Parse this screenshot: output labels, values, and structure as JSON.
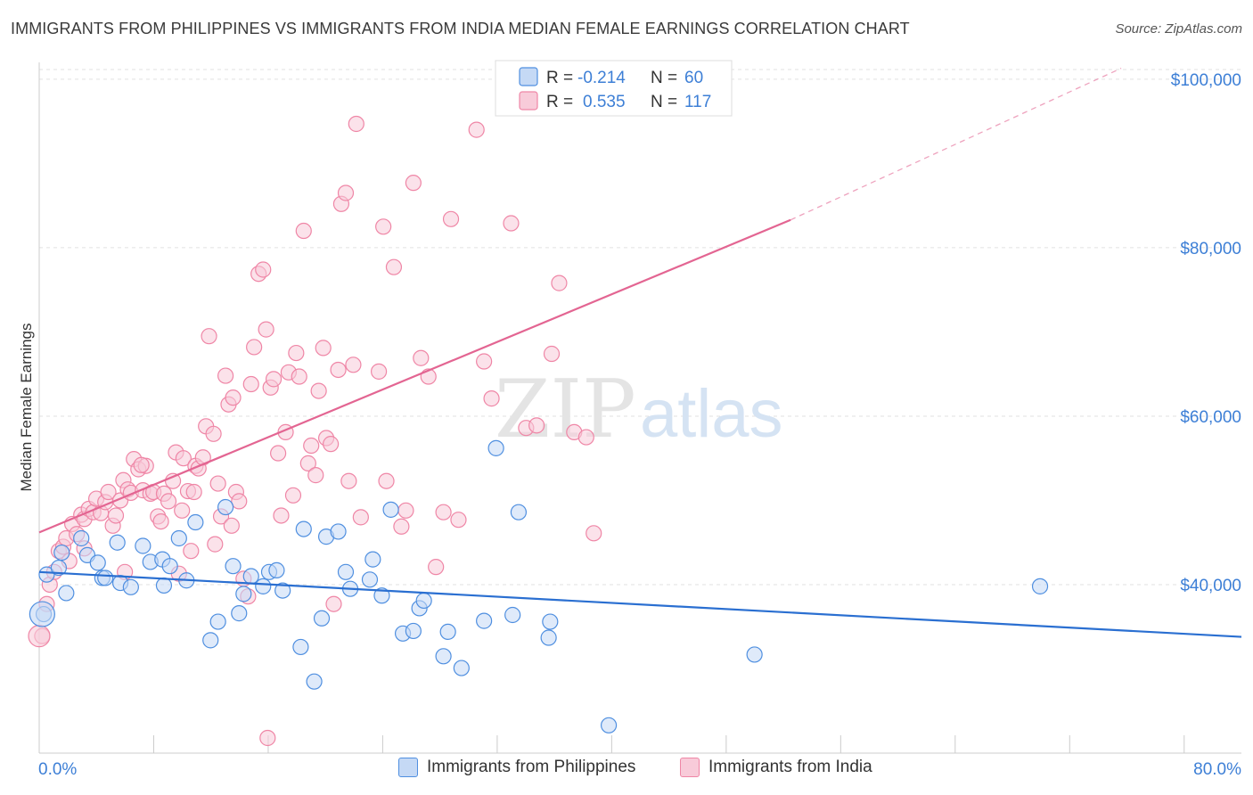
{
  "header": {
    "title": "IMMIGRANTS FROM PHILIPPINES VS IMMIGRANTS FROM INDIA MEDIAN FEMALE EARNINGS CORRELATION CHART",
    "source": "Source: ZipAtlas.com"
  },
  "watermark": {
    "part1": "ZIP",
    "part2": "atlas"
  },
  "colors": {
    "blue": "#4f8fe0",
    "blue_fill": "#c5d9f5",
    "blue_line": "#2a6fd1",
    "pink": "#ef86a6",
    "pink_fill": "#f8cbd9",
    "pink_line": "#e36592",
    "tick_blue": "#3d7fd6"
  },
  "legend_top": {
    "rows": [
      {
        "r_label": "R =",
        "r_value": "-0.214",
        "n_label": "N =",
        "n_value": "60"
      },
      {
        "r_label": "R =",
        "r_value": "0.535",
        "n_label": "N =",
        "n_value": "117"
      }
    ]
  },
  "legend_bottom": {
    "items": [
      "Immigrants from Philippines",
      "Immigrants from India"
    ]
  },
  "chart_data": {
    "type": "scatter",
    "title": "IMMIGRANTS FROM PHILIPPINES VS IMMIGRANTS FROM INDIA MEDIAN FEMALE EARNINGS CORRELATION CHART",
    "xlabel": "",
    "ylabel": "Median Female Earnings",
    "xlim": [
      0,
      80
    ],
    "ylim": [
      20000,
      102000
    ],
    "x_tick_labels": [
      "0.0%",
      "80.0%"
    ],
    "y_ticks": [
      40000,
      60000,
      80000,
      100000
    ],
    "y_tick_labels": [
      "$40,000",
      "$60,000",
      "$80,000",
      "$100,000"
    ],
    "grid": true,
    "legend_position": "top-center",
    "series": [
      {
        "name": "Immigrants from Philippines",
        "r": -0.214,
        "n": 60,
        "trend": {
          "x0": 0,
          "y0": 41500,
          "x1": 80,
          "y1": 33800
        },
        "points": [
          [
            0.3,
            36500
          ],
          [
            0.5,
            41200
          ],
          [
            1.3,
            42000
          ],
          [
            1.8,
            39000
          ],
          [
            1.5,
            43800
          ],
          [
            2.8,
            45500
          ],
          [
            3.2,
            43500
          ],
          [
            3.9,
            42600
          ],
          [
            4.2,
            40800
          ],
          [
            5.2,
            45000
          ],
          [
            4.4,
            40800
          ],
          [
            5.4,
            40200
          ],
          [
            6.1,
            39700
          ],
          [
            6.9,
            44600
          ],
          [
            7.4,
            42700
          ],
          [
            8.2,
            43000
          ],
          [
            8.3,
            39900
          ],
          [
            8.7,
            42200
          ],
          [
            9.3,
            45500
          ],
          [
            9.8,
            40500
          ],
          [
            10.4,
            47400
          ],
          [
            11.4,
            33400
          ],
          [
            11.9,
            35600
          ],
          [
            12.4,
            49200
          ],
          [
            12.9,
            42200
          ],
          [
            13.3,
            36600
          ],
          [
            13.6,
            38900
          ],
          [
            14.1,
            41000
          ],
          [
            14.9,
            39800
          ],
          [
            15.3,
            41500
          ],
          [
            15.8,
            41700
          ],
          [
            16.2,
            39300
          ],
          [
            17.4,
            32600
          ],
          [
            17.6,
            46600
          ],
          [
            18.3,
            28500
          ],
          [
            18.8,
            36000
          ],
          [
            19.1,
            45700
          ],
          [
            19.9,
            46300
          ],
          [
            20.4,
            41500
          ],
          [
            20.7,
            39500
          ],
          [
            22.0,
            40600
          ],
          [
            22.2,
            43000
          ],
          [
            22.8,
            38700
          ],
          [
            23.4,
            48900
          ],
          [
            24.2,
            34200
          ],
          [
            24.9,
            34500
          ],
          [
            25.3,
            37200
          ],
          [
            25.6,
            38100
          ],
          [
            26.9,
            31500
          ],
          [
            27.2,
            34400
          ],
          [
            28.1,
            30100
          ],
          [
            29.6,
            35700
          ],
          [
            30.4,
            56200
          ],
          [
            31.5,
            36400
          ],
          [
            31.9,
            48600
          ],
          [
            33.9,
            33700
          ],
          [
            34.0,
            35600
          ],
          [
            37.9,
            23300
          ],
          [
            47.6,
            31700
          ],
          [
            66.6,
            39800
          ]
        ]
      },
      {
        "name": "Immigrants from India",
        "r": 0.535,
        "n": 117,
        "trend": {
          "x0": 0,
          "y0": 46200,
          "x1": 50,
          "y1": 83300,
          "dash_x1": 72,
          "dash_y1": 101300
        },
        "points": [
          [
            0.2,
            33900
          ],
          [
            0.5,
            37700
          ],
          [
            0.7,
            40000
          ],
          [
            1.0,
            41500
          ],
          [
            1.3,
            44000
          ],
          [
            1.6,
            44500
          ],
          [
            1.8,
            45500
          ],
          [
            2.2,
            47200
          ],
          [
            2.5,
            46000
          ],
          [
            2.8,
            48300
          ],
          [
            3.0,
            47800
          ],
          [
            3.3,
            49000
          ],
          [
            3.6,
            48600
          ],
          [
            3.8,
            50200
          ],
          [
            4.1,
            48500
          ],
          [
            4.4,
            49800
          ],
          [
            4.6,
            51000
          ],
          [
            4.9,
            47000
          ],
          [
            5.1,
            48200
          ],
          [
            5.4,
            50000
          ],
          [
            5.6,
            52400
          ],
          [
            5.9,
            51300
          ],
          [
            6.1,
            50900
          ],
          [
            6.3,
            54900
          ],
          [
            6.6,
            53700
          ],
          [
            6.9,
            51200
          ],
          [
            7.1,
            54100
          ],
          [
            7.4,
            50800
          ],
          [
            7.6,
            51000
          ],
          [
            7.9,
            48100
          ],
          [
            8.1,
            47500
          ],
          [
            8.3,
            50800
          ],
          [
            8.6,
            49900
          ],
          [
            8.9,
            52300
          ],
          [
            9.1,
            55700
          ],
          [
            9.3,
            41300
          ],
          [
            9.6,
            55000
          ],
          [
            9.9,
            51100
          ],
          [
            10.1,
            44000
          ],
          [
            10.4,
            54100
          ],
          [
            10.6,
            53800
          ],
          [
            10.9,
            55100
          ],
          [
            11.1,
            58800
          ],
          [
            11.3,
            69500
          ],
          [
            11.6,
            57900
          ],
          [
            11.9,
            52000
          ],
          [
            12.1,
            48100
          ],
          [
            12.4,
            64800
          ],
          [
            12.6,
            61400
          ],
          [
            12.9,
            62200
          ],
          [
            13.1,
            51000
          ],
          [
            13.3,
            49900
          ],
          [
            13.6,
            40700
          ],
          [
            13.9,
            38600
          ],
          [
            14.1,
            63800
          ],
          [
            14.3,
            68200
          ],
          [
            14.6,
            76900
          ],
          [
            14.9,
            77400
          ],
          [
            15.1,
            70300
          ],
          [
            15.4,
            63400
          ],
          [
            15.6,
            64400
          ],
          [
            15.9,
            55600
          ],
          [
            16.1,
            48200
          ],
          [
            16.4,
            58100
          ],
          [
            16.6,
            65200
          ],
          [
            16.9,
            50600
          ],
          [
            17.1,
            67500
          ],
          [
            17.3,
            64700
          ],
          [
            17.6,
            82000
          ],
          [
            17.9,
            54400
          ],
          [
            18.1,
            56500
          ],
          [
            18.4,
            53000
          ],
          [
            18.6,
            63000
          ],
          [
            18.9,
            68100
          ],
          [
            19.1,
            57400
          ],
          [
            19.4,
            56700
          ],
          [
            19.6,
            37700
          ],
          [
            19.9,
            65500
          ],
          [
            20.1,
            85200
          ],
          [
            20.4,
            86500
          ],
          [
            20.6,
            52300
          ],
          [
            20.9,
            66100
          ],
          [
            21.1,
            94700
          ],
          [
            21.4,
            48000
          ],
          [
            22.6,
            65300
          ],
          [
            22.9,
            82500
          ],
          [
            23.1,
            52300
          ],
          [
            23.6,
            77700
          ],
          [
            24.1,
            46900
          ],
          [
            24.4,
            48800
          ],
          [
            24.9,
            87700
          ],
          [
            25.4,
            66900
          ],
          [
            25.9,
            64700
          ],
          [
            26.4,
            42100
          ],
          [
            26.9,
            48600
          ],
          [
            27.4,
            83400
          ],
          [
            27.9,
            47700
          ],
          [
            29.1,
            94000
          ],
          [
            29.6,
            66500
          ],
          [
            30.1,
            62100
          ],
          [
            31.4,
            82900
          ],
          [
            32.4,
            58600
          ],
          [
            33.1,
            58900
          ],
          [
            34.1,
            67400
          ],
          [
            34.6,
            75800
          ],
          [
            35.6,
            58100
          ],
          [
            36.4,
            57500
          ],
          [
            36.9,
            46100
          ],
          [
            15.2,
            21800
          ],
          [
            5.7,
            41500
          ],
          [
            10.3,
            51000
          ],
          [
            12.8,
            47000
          ],
          [
            3.0,
            44300
          ],
          [
            2.0,
            42800
          ],
          [
            6.8,
            54200
          ],
          [
            9.5,
            48800
          ],
          [
            11.7,
            44800
          ]
        ]
      }
    ]
  }
}
